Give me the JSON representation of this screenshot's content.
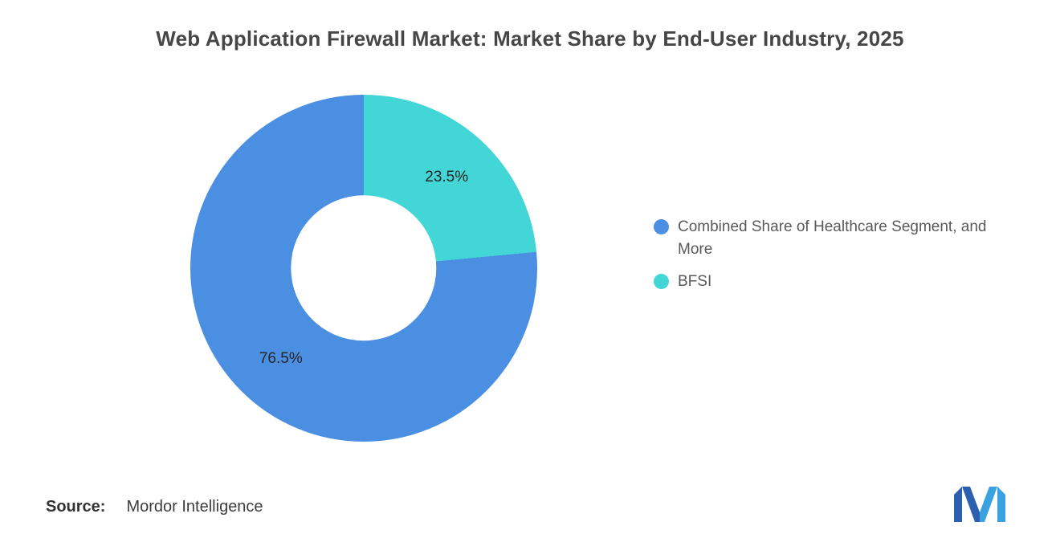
{
  "title": "Web Application Firewall Market: Market Share by End-User Industry, 2025",
  "chart_data": {
    "type": "pie",
    "subtype": "donut",
    "title": "Web Application Firewall Market: Market Share by End-User Industry, 2025",
    "segments": [
      {
        "label": "Combined Share of Healthcare Segment, and More",
        "value": 76.5,
        "display": "76.5%",
        "color": "#4A8FE2"
      },
      {
        "label": "BFSI",
        "value": 23.5,
        "display": "23.5%",
        "color": "#43D6D6"
      }
    ],
    "draw_order": [
      1,
      0
    ],
    "rotation": "clockwise-from-top",
    "hole_ratio": 0.42,
    "legend_position": "right",
    "labels_inside": true
  },
  "source": {
    "label": "Source:",
    "value": "Mordor Intelligence"
  },
  "logo": {
    "name": "Mordor Intelligence logo",
    "color_dark": "#2B5FB0",
    "color_light": "#3AA2E0"
  }
}
